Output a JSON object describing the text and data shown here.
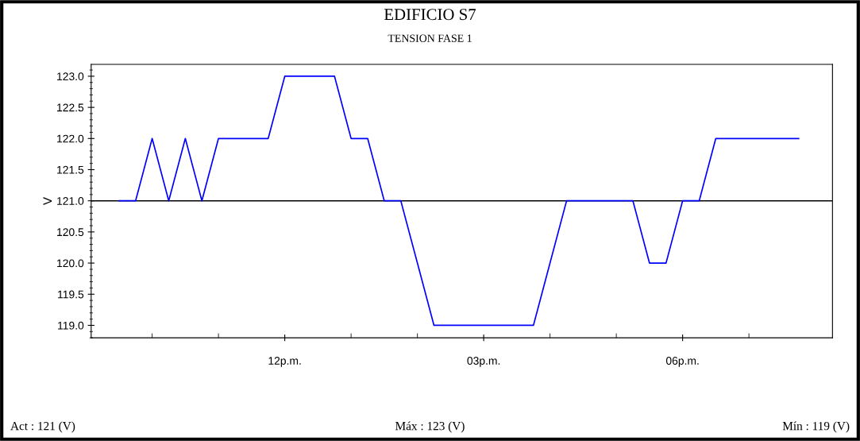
{
  "chart_data": {
    "type": "line",
    "title": "EDIFICIO S7",
    "subtitle": "TENSION FASE 1",
    "ylabel": "V",
    "categories": [
      null,
      null,
      null,
      null,
      null,
      null,
      null,
      null,
      null,
      null,
      "12p.m.",
      null,
      null,
      null,
      null,
      null,
      null,
      null,
      null,
      null,
      null,
      null,
      "03p.m.",
      null,
      null,
      null,
      null,
      null,
      null,
      null,
      null,
      null,
      null,
      null,
      "06p.m.",
      null,
      null,
      null,
      null,
      null,
      null,
      null
    ],
    "series": [
      {
        "color": "#0000ff",
        "values": [
          121,
          121,
          122,
          121,
          122,
          121,
          122,
          122,
          122,
          122,
          123,
          123,
          123,
          123,
          122,
          122,
          121,
          121,
          120,
          119,
          119,
          119,
          119,
          119,
          119,
          119,
          120,
          121,
          121,
          121,
          121,
          121,
          120,
          120,
          121,
          121,
          122,
          122,
          122,
          122,
          122,
          122
        ]
      }
    ],
    "ylim": [
      118.8,
      123.19
    ],
    "yticks": [
      {
        "value": 119,
        "label": "119.0"
      },
      119.5,
      {
        "value": 120,
        "label": "120.0"
      },
      120.5,
      {
        "value": 121,
        "label": "121.0"
      },
      121.5,
      {
        "value": 122,
        "label": "122.0"
      },
      122.5,
      {
        "value": 123,
        "label": "123.0"
      }
    ],
    "ref_lines": [
      {
        "axis": "y",
        "value": 121,
        "color": "#000000"
      }
    ],
    "annotations": [
      "Act : 121 (V)",
      "Máx : 123 (V)",
      "Mín : 119 (V)"
    ],
    "grid": false,
    "marker": "none",
    "line_style": "solid"
  }
}
